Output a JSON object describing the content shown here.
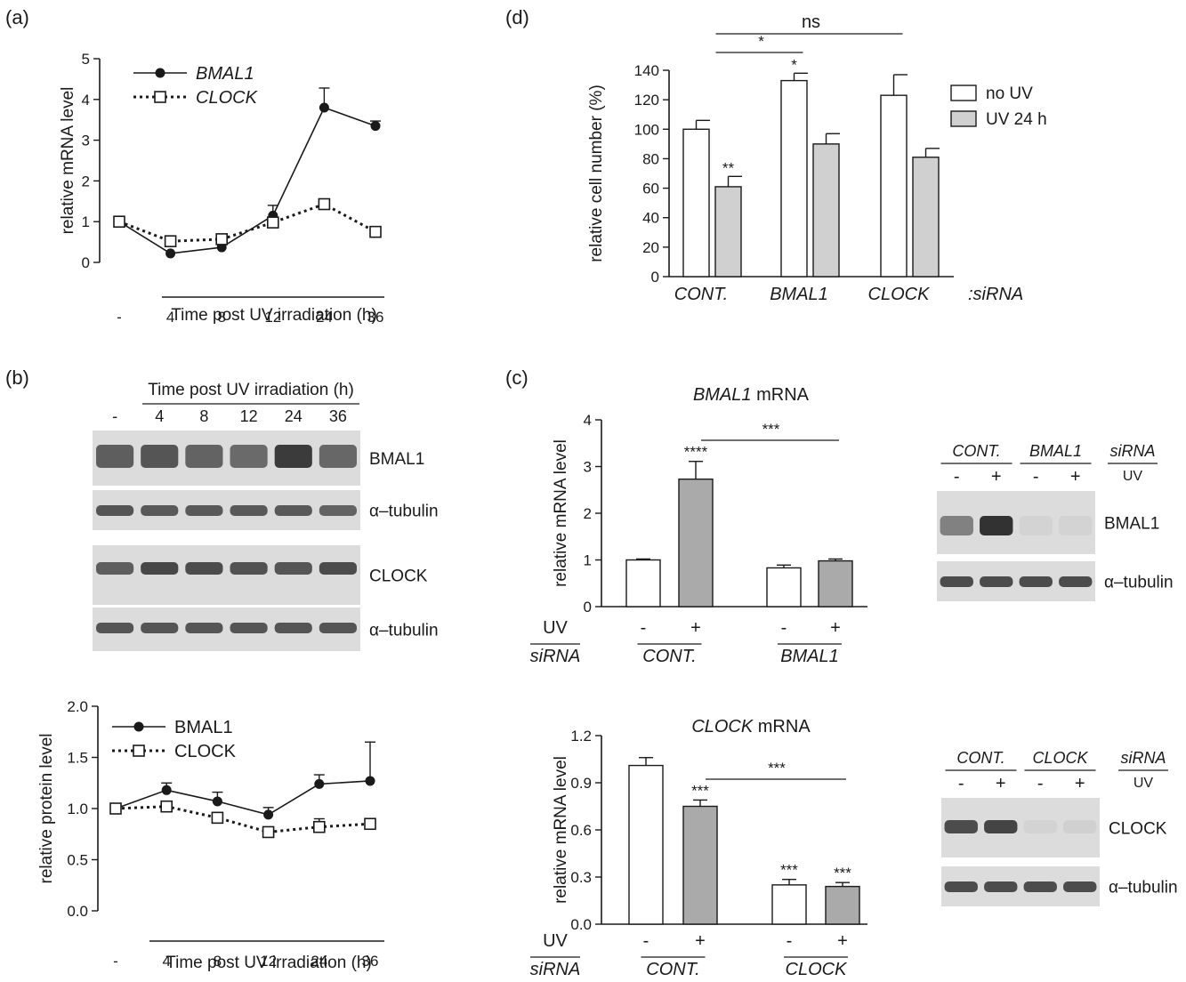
{
  "panel_labels": {
    "a": "(a)",
    "b": "(b)",
    "c": "(c)",
    "d": "(d)"
  },
  "chart_data": [
    {
      "id": "a",
      "type": "line",
      "ylabel": "relative mRNA level",
      "xlabel": "Time post UV irradiation (h)",
      "categories": [
        "-",
        "4",
        "8",
        "12",
        "24",
        "36"
      ],
      "ylim": [
        0,
        5
      ],
      "yticks": [
        "0",
        "1",
        "2",
        "3",
        "4",
        "5"
      ],
      "legend_position": "top-left",
      "series": [
        {
          "name": "BMAL1",
          "values": [
            1.0,
            0.22,
            0.37,
            1.15,
            3.8,
            3.35
          ],
          "errors": [
            0,
            0,
            0,
            0.25,
            0.48,
            0.12
          ],
          "marker": "filled-circle",
          "line": "solid"
        },
        {
          "name": "CLOCK",
          "values": [
            1.0,
            0.52,
            0.57,
            0.98,
            1.43,
            0.75
          ],
          "errors": [
            0.05,
            0.04,
            0.04,
            0.05,
            0.08,
            0
          ],
          "marker": "open-square",
          "line": "dotted"
        }
      ]
    },
    {
      "id": "b",
      "type": "line",
      "ylabel": "relative protein level",
      "xlabel": "Time post UV irradiation (h)",
      "categories": [
        "-",
        "4",
        "8",
        "12",
        "24",
        "36"
      ],
      "ylim": [
        0,
        2
      ],
      "yticks": [
        "0.0",
        "0.5",
        "1.0",
        "1.5",
        "2.0"
      ],
      "legend_position": "top-left",
      "series": [
        {
          "name": "BMAL1",
          "values": [
            1.0,
            1.18,
            1.07,
            0.94,
            1.24,
            1.27
          ],
          "errors": [
            0,
            0.07,
            0.09,
            0.07,
            0.09,
            0.38
          ],
          "marker": "filled-circle",
          "line": "solid"
        },
        {
          "name": "CLOCK",
          "values": [
            1.0,
            1.02,
            0.91,
            0.77,
            0.82,
            0.85
          ],
          "errors": [
            0.03,
            0.04,
            0.03,
            0.04,
            0.08,
            0
          ],
          "marker": "open-square",
          "line": "dotted"
        }
      ]
    },
    {
      "id": "d",
      "type": "bar",
      "ylabel": "relative cell number (%)",
      "categories": [
        "CONT.",
        "BMAL1",
        "CLOCK"
      ],
      "category_suffix": ":siRNA",
      "ylim": [
        0,
        140
      ],
      "yticks": [
        "0",
        "20",
        "40",
        "60",
        "80",
        "100",
        "120",
        "140"
      ],
      "legend_position": "top-right",
      "series": [
        {
          "name": "no UV",
          "values": [
            100,
            133,
            123
          ],
          "errors": [
            6,
            5,
            14
          ],
          "fill": "#ffffff",
          "stars": [
            "",
            "*",
            ""
          ]
        },
        {
          "name": "UV 24 h",
          "values": [
            61,
            90,
            81
          ],
          "errors": [
            7,
            7,
            6
          ],
          "fill": "#d0d0d0",
          "stars": [
            "**",
            "",
            ""
          ]
        }
      ],
      "comparisons": [
        {
          "label": "*",
          "from": [
            0,
            1
          ],
          "to": [
            1,
            0
          ]
        },
        {
          "label": "ns",
          "from": [
            0,
            1
          ],
          "to": [
            2,
            0
          ]
        }
      ]
    },
    {
      "id": "c1",
      "type": "bar",
      "title_italic": "BMAL1",
      "title_rest": " mRNA",
      "ylabel": "relative mRNA level",
      "ylim": [
        0,
        4
      ],
      "yticks": [
        "0",
        "1",
        "2",
        "3",
        "4"
      ],
      "row_labels": {
        "uv": "UV",
        "sirna": "siRNA"
      },
      "groups": [
        "CONT.",
        "BMAL1"
      ],
      "uv_marks": [
        "-",
        "+"
      ],
      "bars": [
        {
          "group": 0,
          "uv": 0,
          "value": 1.0,
          "error": 0.02,
          "fill": "#ffffff",
          "stars": ""
        },
        {
          "group": 0,
          "uv": 1,
          "value": 2.73,
          "error": 0.38,
          "fill": "#aaaaaa",
          "stars": "****"
        },
        {
          "group": 1,
          "uv": 0,
          "value": 0.83,
          "error": 0.06,
          "fill": "#ffffff",
          "stars": ""
        },
        {
          "group": 1,
          "uv": 1,
          "value": 0.98,
          "error": 0.04,
          "fill": "#aaaaaa",
          "stars": ""
        }
      ],
      "comparison": {
        "label": "***",
        "from": 1,
        "to": 3
      }
    },
    {
      "id": "c2",
      "type": "bar",
      "title_italic": "CLOCK",
      "title_rest": " mRNA",
      "ylabel": "relative mRNA level",
      "ylim": [
        0,
        1.2
      ],
      "yticks": [
        "0.0",
        "0.3",
        "0.6",
        "0.9",
        "1.2"
      ],
      "row_labels": {
        "uv": "UV",
        "sirna": "siRNA"
      },
      "groups": [
        "CONT.",
        "CLOCK"
      ],
      "uv_marks": [
        "-",
        "+"
      ],
      "bars": [
        {
          "group": 0,
          "uv": 0,
          "value": 1.01,
          "error": 0.05,
          "fill": "#ffffff",
          "stars": ""
        },
        {
          "group": 0,
          "uv": 1,
          "value": 0.75,
          "error": 0.04,
          "fill": "#aaaaaa",
          "stars": "***"
        },
        {
          "group": 1,
          "uv": 0,
          "value": 0.25,
          "error": 0.035,
          "fill": "#ffffff",
          "stars": "***"
        },
        {
          "group": 1,
          "uv": 1,
          "value": 0.24,
          "error": 0.025,
          "fill": "#aaaaaa",
          "stars": "***"
        }
      ],
      "comparison": {
        "label": "***",
        "from": 1,
        "to": 3
      }
    }
  ],
  "blot_b": {
    "header": "Time post UV irradiation (h)",
    "lanes": [
      "-",
      "4",
      "8",
      "12",
      "24",
      "36"
    ],
    "strips": [
      "BMAL1",
      "α–tubulin",
      "CLOCK",
      "α–tubulin"
    ],
    "intensity": [
      [
        0.75,
        0.8,
        0.72,
        0.68,
        0.95,
        0.7
      ],
      [
        0.8,
        0.78,
        0.78,
        0.78,
        0.78,
        0.72
      ],
      [
        0.75,
        0.88,
        0.85,
        0.82,
        0.8,
        0.85
      ],
      [
        0.8,
        0.8,
        0.8,
        0.8,
        0.8,
        0.8
      ]
    ]
  },
  "blot_c1": {
    "groups": [
      "CONT.",
      "BMAL1"
    ],
    "row_label": "siRNA",
    "uv_label": "UV",
    "uv_marks": [
      "-",
      "+",
      "-",
      "+"
    ],
    "strips": [
      "BMAL1",
      "α–tubulin"
    ],
    "intensity": [
      [
        0.55,
        1.0,
        0.08,
        0.08
      ],
      [
        0.85,
        0.85,
        0.85,
        0.85
      ]
    ]
  },
  "blot_c2": {
    "groups": [
      "CONT.",
      "CLOCK"
    ],
    "row_label": "siRNA",
    "uv_label": "UV",
    "uv_marks": [
      "-",
      "+",
      "-",
      "+"
    ],
    "strips": [
      "CLOCK",
      "α–tubulin"
    ],
    "intensity": [
      [
        0.85,
        0.9,
        0.08,
        0.1
      ],
      [
        0.85,
        0.85,
        0.85,
        0.85
      ]
    ]
  }
}
